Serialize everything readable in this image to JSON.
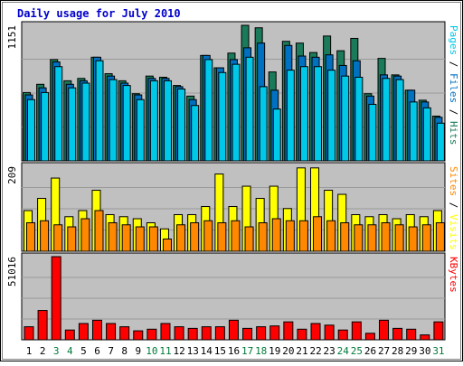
{
  "chart_data": {
    "type": "bar",
    "title": "Daily usage for July 2010",
    "categories": [
      "1",
      "2",
      "3",
      "4",
      "5",
      "6",
      "7",
      "8",
      "9",
      "10",
      "11",
      "12",
      "13",
      "14",
      "15",
      "16",
      "17",
      "18",
      "19",
      "20",
      "21",
      "22",
      "23",
      "24",
      "25",
      "26",
      "27",
      "28",
      "29",
      "30",
      "31"
    ],
    "weekend_days": [
      "3",
      "4",
      "10",
      "11",
      "17",
      "18",
      "24",
      "25",
      "31"
    ],
    "colors": {
      "title": "#0000cc",
      "hits": "#1a7a5a",
      "files": "#0070c0",
      "pages": "#00c8e8",
      "visits": "#ffff00",
      "sites": "#ff8800",
      "kbytes": "#ff0000",
      "plot_bg": "#c0c0c0",
      "weekday_label": "#000000",
      "weekend_label": "#007a3a"
    },
    "panels": [
      {
        "id": "hits-files-pages",
        "max_label": "1151",
        "ymax": 1151,
        "right_label": [
          "Pages",
          " / ",
          "Files",
          " / ",
          "Hits"
        ],
        "series": [
          {
            "name": "Hits",
            "values": [
              580,
              650,
              860,
              680,
              700,
              880,
              740,
              680,
              570,
              720,
              710,
              640,
              550,
              895,
              790,
              915,
              1151,
              1130,
              755,
              1015,
              1000,
              920,
              1060,
              935,
              1040,
              570,
              870,
              730,
              600,
              515,
              380
            ]
          },
          {
            "name": "Files",
            "values": [
              560,
              620,
              840,
              650,
              680,
              880,
              720,
              660,
              560,
              700,
              700,
              630,
              520,
              895,
              790,
              860,
              960,
              1000,
              600,
              980,
              890,
              880,
              900,
              810,
              850,
              550,
              730,
              720,
              600,
              500,
              370
            ]
          },
          {
            "name": "Pages",
            "values": [
              520,
              580,
              800,
              620,
              660,
              850,
              690,
              640,
              520,
              680,
              680,
              610,
              470,
              860,
              750,
              820,
              880,
              630,
              440,
              770,
              800,
              800,
              770,
              720,
              710,
              480,
              700,
              690,
              500,
              450,
              320
            ]
          }
        ]
      },
      {
        "id": "visits-sites",
        "max_label": "209",
        "ymax": 209,
        "right_label": [
          "Sites",
          " / ",
          "Visits"
        ],
        "series": [
          {
            "name": "Visits",
            "values": [
              100,
              130,
              180,
              85,
              100,
              150,
              90,
              85,
              80,
              70,
              55,
              90,
              90,
              110,
              190,
              110,
              160,
              130,
              160,
              105,
              205,
              205,
              150,
              140,
              90,
              85,
              90,
              80,
              90,
              85,
              100
            ]
          },
          {
            "name": "Sites",
            "values": [
              70,
              75,
              65,
              60,
              80,
              100,
              70,
              65,
              60,
              60,
              30,
              65,
              70,
              75,
              70,
              75,
              60,
              70,
              80,
              75,
              75,
              85,
              75,
              70,
              65,
              65,
              70,
              65,
              60,
              65,
              70
            ]
          }
        ]
      },
      {
        "id": "kbytes",
        "max_label": "51016",
        "ymax": 51016,
        "right_label": [
          "KBytes"
        ],
        "series": [
          {
            "name": "KBytes",
            "values": [
              8000,
              18000,
              51016,
              6000,
              10000,
              12000,
              10000,
              8000,
              5500,
              6500,
              10000,
              8000,
              7000,
              8000,
              8000,
              12000,
              7000,
              8000,
              8500,
              11000,
              6500,
              10000,
              9000,
              6000,
              11000,
              4000,
              12000,
              7000,
              6500,
              3000,
              11000
            ]
          }
        ]
      }
    ]
  }
}
